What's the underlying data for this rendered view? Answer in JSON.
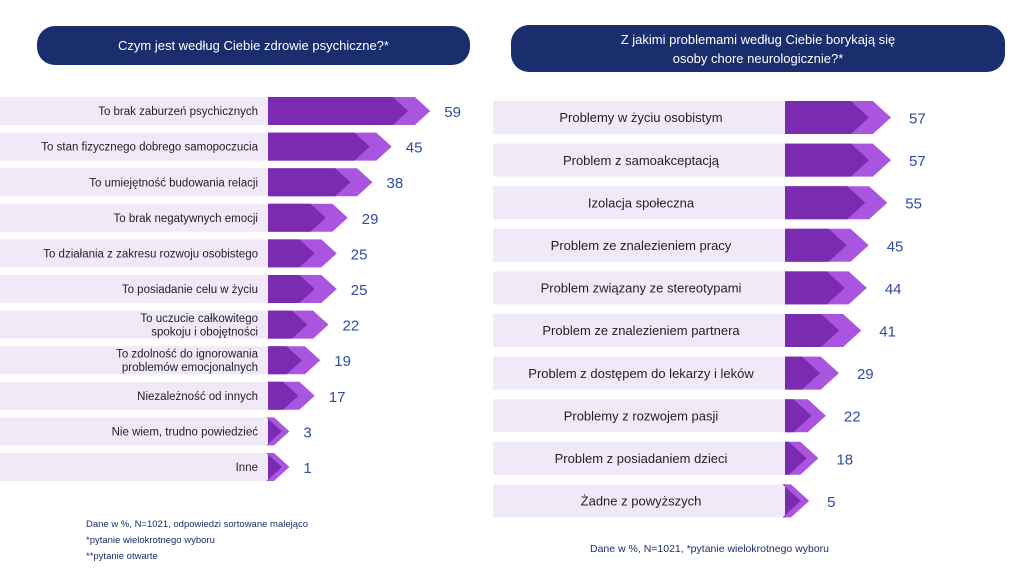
{
  "colors": {
    "header_bg": "#1a2d6c",
    "row_bg": "#f1e9f8",
    "bar_dark": "#7a2bb0",
    "bar_light": "#a955e0",
    "value_text": "#2e4aa6"
  },
  "left": {
    "title": "Czym jest według Ciebie zdrowie psychiczne?*",
    "notes": [
      "Dane w %, N=1021, odpowiedzi sortowane malejąco",
      "*pytanie wielokrotnego wyboru",
      "**pytanie otwarte"
    ]
  },
  "right": {
    "title_lines": [
      "Z jakimi problemami według Ciebie borykają się",
      "osoby chore neurologicznie?*"
    ],
    "note": "Dane w %, N=1021, *pytanie wielokrotnego wyboru"
  },
  "chart_data": [
    {
      "type": "bar",
      "orientation": "horizontal",
      "title": "Czym jest według Ciebie zdrowie psychiczne?*",
      "unit": "%",
      "categories": [
        "To brak zaburzeń psychicznych",
        "To stan fizycznego dobrego samopoczucia",
        "To umiejętność budowania relacji",
        "To brak negatywnych emocji",
        "To działania z zakresu rozwoju osobistego",
        "To posiadanie celu w życiu",
        "To uczucie całkowitego spokoju i obojętności",
        "To zdolność do ignorowania problemów emocjonalnych",
        "Niezależność od innych",
        "Nie wiem, trudno powiedzieć",
        "Inne"
      ],
      "category_lines": [
        [
          "To brak zaburzeń psychicznych"
        ],
        [
          "To stan fizycznego dobrego samopoczucia"
        ],
        [
          "To umiejętność budowania relacji"
        ],
        [
          "To brak negatywnych emocji"
        ],
        [
          "To działania z zakresu rozwoju osobistego"
        ],
        [
          "To posiadanie celu w życiu"
        ],
        [
          "To uczucie całkowitego",
          "spokoju i obojętności"
        ],
        [
          "To zdolność do ignorowania",
          "problemów emocjonalnych"
        ],
        [
          "Niezależność od innych"
        ],
        [
          "Nie wiem, trudno powiedzieć"
        ],
        [
          "Inne"
        ]
      ],
      "values": [
        59,
        45,
        38,
        29,
        25,
        25,
        22,
        19,
        17,
        3,
        1
      ]
    },
    {
      "type": "bar",
      "orientation": "horizontal",
      "title": "Z jakimi problemami według Ciebie borykają się osoby chore neurologicznie?*",
      "unit": "%",
      "categories": [
        "Problemy w życiu osobistym",
        "Problem z samoakceptacją",
        "Izolacja społeczna",
        "Problem ze znalezieniem pracy",
        "Problem związany ze stereotypami",
        "Problem ze znalezieniem partnera",
        "Problem z dostępem do lekarzy i leków",
        "Problemy z rozwojem pasji",
        "Problem z posiadaniem dzieci",
        "Żadne z powyższych"
      ],
      "values": [
        57,
        57,
        55,
        45,
        44,
        41,
        29,
        22,
        18,
        5
      ]
    }
  ]
}
